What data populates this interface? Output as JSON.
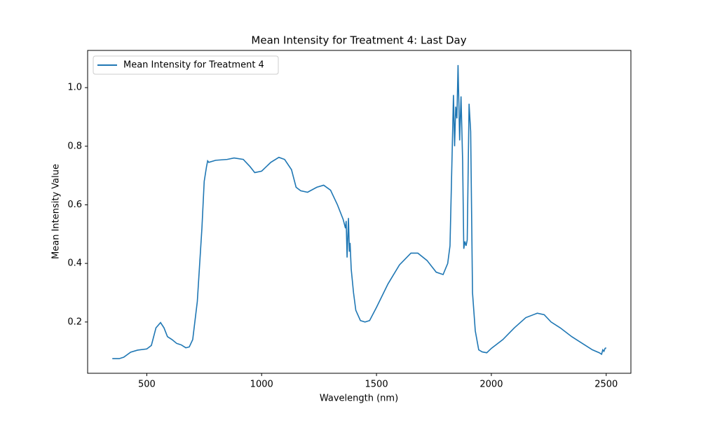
{
  "chart_data": {
    "type": "line",
    "title": "Mean Intensity for Treatment 4: Last Day",
    "x_label": "Wavelength (nm)",
    "y_label": "Mean Intensity Value",
    "xlim": [
      242.5,
      2607.5
    ],
    "ylim": [
      0.025,
      1.127
    ],
    "xticks": [
      500,
      1000,
      1500,
      2000,
      2500
    ],
    "yticks": [
      0.2,
      0.4,
      0.6,
      0.8,
      {
        "value": 1.0,
        "label": "1.0"
      }
    ],
    "legend": "upper left",
    "x": [
      350,
      380,
      400,
      430,
      460,
      500,
      520,
      540,
      560,
      575,
      590,
      610,
      630,
      650,
      670,
      685,
      700,
      720,
      740,
      750,
      760,
      765,
      770,
      800,
      850,
      880,
      920,
      950,
      970,
      1000,
      1040,
      1075,
      1100,
      1130,
      1150,
      1170,
      1200,
      1240,
      1270,
      1300,
      1330,
      1355,
      1365,
      1368,
      1372,
      1378,
      1382,
      1385,
      1390,
      1400,
      1410,
      1430,
      1450,
      1470,
      1500,
      1550,
      1600,
      1650,
      1680,
      1720,
      1760,
      1790,
      1810,
      1820,
      1830,
      1835,
      1840,
      1845,
      1850,
      1855,
      1862,
      1868,
      1875,
      1880,
      1885,
      1890,
      1895,
      1903,
      1910,
      1918,
      1930,
      1945,
      1960,
      1980,
      2000,
      2050,
      2100,
      2150,
      2200,
      2230,
      2260,
      2300,
      2350,
      2400,
      2440,
      2470,
      2480,
      2485,
      2490,
      2495,
      2500
    ],
    "series": [
      {
        "name": "Mean Intensity for Treatment 4",
        "color": "#1f77b4",
        "values": [
          0.075,
          0.075,
          0.08,
          0.097,
          0.104,
          0.108,
          0.12,
          0.18,
          0.198,
          0.18,
          0.15,
          0.14,
          0.127,
          0.122,
          0.112,
          0.115,
          0.14,
          0.27,
          0.52,
          0.68,
          0.73,
          0.75,
          0.745,
          0.752,
          0.755,
          0.76,
          0.755,
          0.73,
          0.71,
          0.715,
          0.745,
          0.762,
          0.755,
          0.72,
          0.66,
          0.648,
          0.643,
          0.66,
          0.667,
          0.65,
          0.6,
          0.55,
          0.52,
          0.545,
          0.42,
          0.555,
          0.44,
          0.47,
          0.38,
          0.3,
          0.24,
          0.205,
          0.2,
          0.205,
          0.25,
          0.33,
          0.395,
          0.435,
          0.435,
          0.41,
          0.37,
          0.362,
          0.4,
          0.46,
          0.8,
          0.975,
          0.8,
          0.935,
          0.895,
          1.077,
          0.82,
          0.97,
          0.75,
          0.45,
          0.475,
          0.46,
          0.48,
          0.945,
          0.85,
          0.3,
          0.17,
          0.105,
          0.098,
          0.095,
          0.11,
          0.14,
          0.18,
          0.215,
          0.23,
          0.225,
          0.2,
          0.18,
          0.15,
          0.125,
          0.105,
          0.095,
          0.09,
          0.105,
          0.1,
          0.11,
          0.112
        ]
      }
    ]
  }
}
